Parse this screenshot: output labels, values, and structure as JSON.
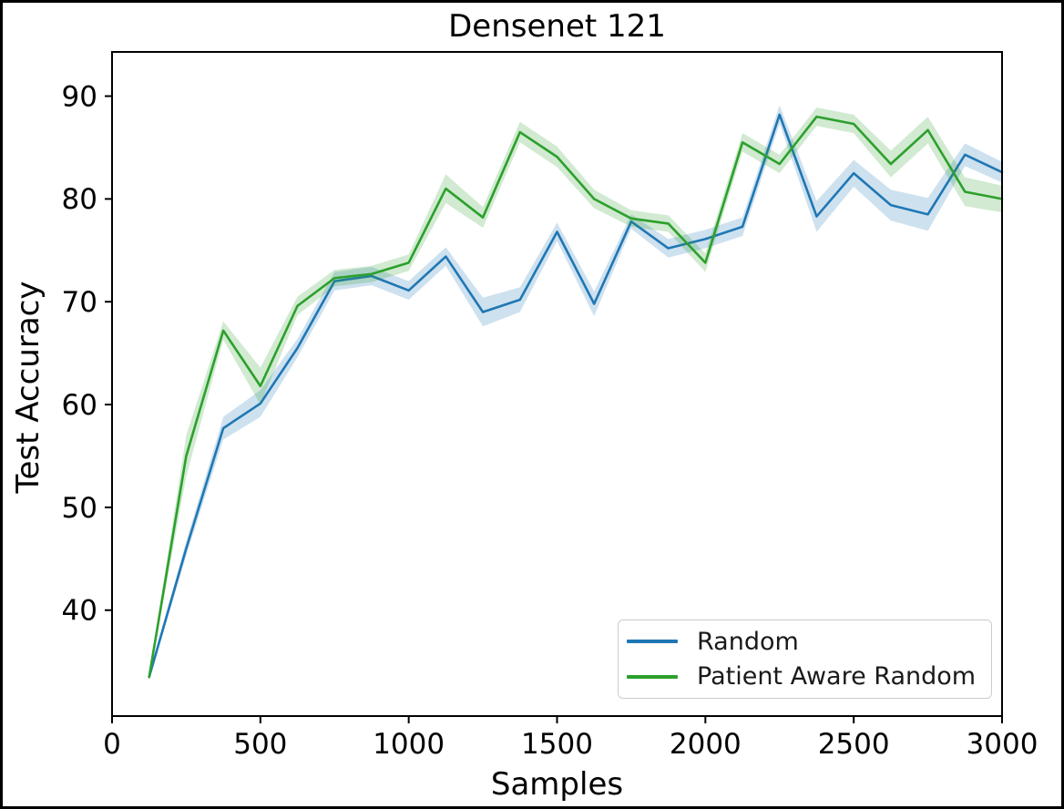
{
  "title": "Densenet 121",
  "axes": {
    "xlabel": "Samples",
    "ylabel": "Test Accuracy",
    "x_ticks": [
      0,
      500,
      1000,
      1500,
      2000,
      2500,
      3000
    ],
    "y_ticks": [
      40,
      50,
      60,
      70,
      80,
      90
    ]
  },
  "colors": {
    "random": "#1f77b4",
    "patient_aware_random": "#2ca02c",
    "spine": "#000000",
    "legend_border": "#cccccc",
    "text": "#000000"
  },
  "chart_data": {
    "type": "line",
    "title": "Densenet 121",
    "xlabel": "Samples",
    "ylabel": "Test Accuracy",
    "xlim": [
      0,
      3000
    ],
    "ylim": [
      29.7,
      94.3
    ],
    "x_ticks": [
      0,
      500,
      1000,
      1500,
      2000,
      2500,
      3000
    ],
    "y_ticks": [
      40,
      50,
      60,
      70,
      80,
      90
    ],
    "grid": false,
    "legend_position": "lower right",
    "x": [
      125,
      250,
      375,
      500,
      625,
      750,
      875,
      1000,
      1125,
      1250,
      1375,
      1500,
      1625,
      1750,
      1875,
      2000,
      2125,
      2250,
      2375,
      2500,
      2625,
      2750,
      2875,
      3000
    ],
    "series": [
      {
        "name": "Random",
        "color": "#1f77b4",
        "values": [
          33.5,
          46.0,
          57.7,
          60.1,
          65.5,
          72.0,
          72.5,
          71.1,
          74.4,
          69.0,
          70.2,
          76.8,
          69.8,
          77.8,
          75.2,
          76.1,
          77.3,
          88.2,
          78.3,
          82.5,
          79.4,
          78.5,
          84.3,
          82.6
        ],
        "band_halfwidth": [
          0.3,
          0.7,
          1.1,
          1.3,
          0.9,
          0.9,
          0.9,
          0.9,
          0.9,
          1.4,
          1.2,
          0.9,
          1.2,
          0.7,
          0.9,
          0.9,
          0.9,
          0.9,
          1.5,
          1.3,
          1.5,
          1.6,
          1.1,
          1.0
        ]
      },
      {
        "name": "Patient Aware Random",
        "color": "#2ca02c",
        "values": [
          33.5,
          55.0,
          67.2,
          61.8,
          69.6,
          72.3,
          72.7,
          73.8,
          81.0,
          78.2,
          86.5,
          84.1,
          80.0,
          78.1,
          77.6,
          73.8,
          85.5,
          83.4,
          88.0,
          87.3,
          83.4,
          86.7,
          80.7,
          80.0
        ],
        "band_halfwidth": [
          0.2,
          2.0,
          0.9,
          1.8,
          0.9,
          0.8,
          0.8,
          0.8,
          1.4,
          1.0,
          1.0,
          1.0,
          0.9,
          0.8,
          0.8,
          0.9,
          0.9,
          0.9,
          0.9,
          0.9,
          1.3,
          1.3,
          1.4,
          1.3
        ]
      }
    ]
  }
}
